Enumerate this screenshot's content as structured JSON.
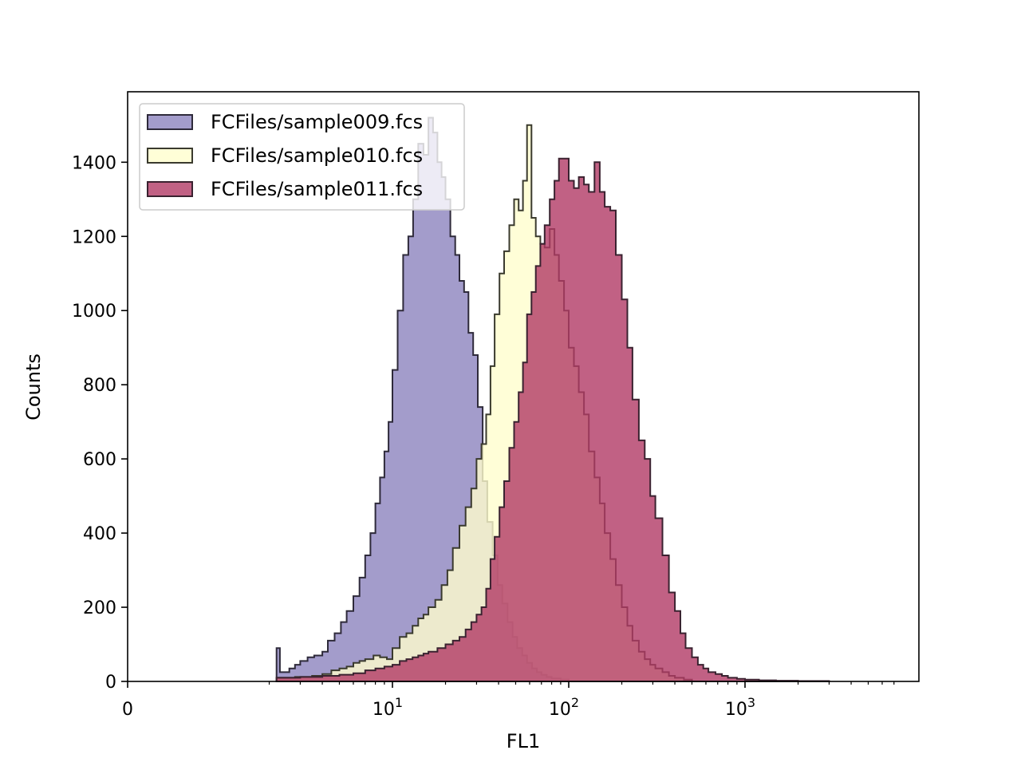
{
  "chart_data": {
    "type": "histogram",
    "xlabel": "FL1",
    "ylabel": "Counts",
    "xscale": "logicle",
    "xlim": [
      0,
      7200
    ],
    "ylim": [
      0,
      1590
    ],
    "grid": false,
    "legend_position": "top-left",
    "x_ticks": [
      {
        "value": 0,
        "label": "0",
        "exp": ""
      },
      {
        "value": 10,
        "label": "10",
        "exp": "1"
      },
      {
        "value": 100,
        "label": "10",
        "exp": "2"
      },
      {
        "value": 1000,
        "label": "10",
        "exp": "3"
      }
    ],
    "y_ticks": [
      0,
      200,
      400,
      600,
      800,
      1000,
      1200,
      1400
    ],
    "series": [
      {
        "name": "FCFiles/sample009.fcs",
        "color": "#8c83be",
        "edge": "#2e2a3a",
        "points": [
          [
            2.2,
            90
          ],
          [
            2.3,
            25
          ],
          [
            2.6,
            35
          ],
          [
            2.8,
            45
          ],
          [
            3.0,
            55
          ],
          [
            3.3,
            65
          ],
          [
            3.6,
            70
          ],
          [
            4.0,
            80
          ],
          [
            4.3,
            110
          ],
          [
            4.7,
            130
          ],
          [
            5.1,
            160
          ],
          [
            5.5,
            190
          ],
          [
            6.0,
            230
          ],
          [
            6.5,
            280
          ],
          [
            7.0,
            340
          ],
          [
            7.5,
            400
          ],
          [
            8.0,
            480
          ],
          [
            8.5,
            550
          ],
          [
            9.0,
            620
          ],
          [
            9.5,
            700
          ],
          [
            10.0,
            840
          ],
          [
            10.7,
            1000
          ],
          [
            11.5,
            1150
          ],
          [
            12.3,
            1200
          ],
          [
            13.1,
            1300
          ],
          [
            14.0,
            1450
          ],
          [
            15.0,
            1420
          ],
          [
            16.0,
            1520
          ],
          [
            17.0,
            1480
          ],
          [
            18.0,
            1400
          ],
          [
            19.0,
            1360
          ],
          [
            20.0,
            1300
          ],
          [
            21.3,
            1200
          ],
          [
            22.7,
            1150
          ],
          [
            24.0,
            1080
          ],
          [
            25.5,
            1050
          ],
          [
            27.0,
            940
          ],
          [
            28.7,
            880
          ],
          [
            30.5,
            740
          ],
          [
            32.5,
            540
          ],
          [
            34.5,
            430
          ],
          [
            37.0,
            340
          ],
          [
            39.5,
            260
          ],
          [
            42.0,
            210
          ],
          [
            45.0,
            160
          ],
          [
            48.0,
            120
          ],
          [
            51.0,
            90
          ],
          [
            54.5,
            70
          ],
          [
            58.0,
            50
          ],
          [
            62.0,
            35
          ],
          [
            66.0,
            25
          ],
          [
            70.0,
            18
          ],
          [
            75.0,
            12
          ],
          [
            80.0,
            8
          ],
          [
            90.0,
            5
          ],
          [
            100.0,
            0
          ]
        ]
      },
      {
        "name": "FCFiles/sample010.fcs",
        "color": "#fffecd",
        "edge": "#3a3a2e",
        "points": [
          [
            2.2,
            10
          ],
          [
            2.8,
            12
          ],
          [
            3.5,
            15
          ],
          [
            4.0,
            20
          ],
          [
            4.5,
            30
          ],
          [
            5.0,
            35
          ],
          [
            5.5,
            40
          ],
          [
            6.0,
            50
          ],
          [
            6.5,
            55
          ],
          [
            7.0,
            60
          ],
          [
            7.8,
            70
          ],
          [
            8.5,
            65
          ],
          [
            9.3,
            60
          ],
          [
            10.0,
            90
          ],
          [
            11.0,
            120
          ],
          [
            12.0,
            130
          ],
          [
            13.0,
            150
          ],
          [
            14.0,
            170
          ],
          [
            15.0,
            180
          ],
          [
            16.0,
            200
          ],
          [
            17.5,
            220
          ],
          [
            19.0,
            260
          ],
          [
            20.5,
            300
          ],
          [
            22.0,
            360
          ],
          [
            24.0,
            420
          ],
          [
            26.0,
            470
          ],
          [
            28.0,
            520
          ],
          [
            30.0,
            600
          ],
          [
            32.0,
            640
          ],
          [
            34.0,
            720
          ],
          [
            36.0,
            850
          ],
          [
            38.0,
            990
          ],
          [
            40.5,
            1100
          ],
          [
            43.0,
            1160
          ],
          [
            46.0,
            1230
          ],
          [
            49.0,
            1300
          ],
          [
            52.0,
            1270
          ],
          [
            55.0,
            1350
          ],
          [
            58.0,
            1500
          ],
          [
            61.5,
            1250
          ],
          [
            65.0,
            1200
          ],
          [
            69.0,
            1180
          ],
          [
            73.0,
            1170
          ],
          [
            78.0,
            1220
          ],
          [
            83.0,
            1150
          ],
          [
            88.0,
            1080
          ],
          [
            94.0,
            1000
          ],
          [
            100.0,
            900
          ],
          [
            107.0,
            850
          ],
          [
            114.0,
            780
          ],
          [
            122.0,
            720
          ],
          [
            130.0,
            620
          ],
          [
            140.0,
            550
          ],
          [
            150.0,
            480
          ],
          [
            160.0,
            400
          ],
          [
            172.0,
            330
          ],
          [
            185.0,
            260
          ],
          [
            200.0,
            200
          ],
          [
            215.0,
            150
          ],
          [
            230.0,
            110
          ],
          [
            250.0,
            80
          ],
          [
            270.0,
            60
          ],
          [
            290.0,
            45
          ],
          [
            310.0,
            35
          ],
          [
            340.0,
            25
          ],
          [
            370.0,
            15
          ],
          [
            400.0,
            10
          ],
          [
            450.0,
            5
          ],
          [
            500.0,
            0
          ]
        ]
      },
      {
        "name": "FCFiles/sample011.fcs",
        "color": "#b13a65",
        "edge": "#3a2230",
        "points": [
          [
            2.2,
            10
          ],
          [
            3.0,
            12
          ],
          [
            4.0,
            15
          ],
          [
            5.0,
            18
          ],
          [
            6.0,
            22
          ],
          [
            7.0,
            30
          ],
          [
            8.0,
            35
          ],
          [
            9.0,
            40
          ],
          [
            10.0,
            45
          ],
          [
            11.0,
            55
          ],
          [
            12.0,
            60
          ],
          [
            13.0,
            65
          ],
          [
            14.0,
            70
          ],
          [
            15.0,
            75
          ],
          [
            16.0,
            80
          ],
          [
            18.0,
            90
          ],
          [
            20.0,
            100
          ],
          [
            22.0,
            110
          ],
          [
            24.0,
            120
          ],
          [
            26.0,
            140
          ],
          [
            28.0,
            160
          ],
          [
            30.0,
            180
          ],
          [
            32.0,
            200
          ],
          [
            34.0,
            250
          ],
          [
            36.0,
            330
          ],
          [
            38.0,
            390
          ],
          [
            40.5,
            470
          ],
          [
            43.0,
            540
          ],
          [
            46.0,
            630
          ],
          [
            49.0,
            700
          ],
          [
            52.0,
            780
          ],
          [
            55.0,
            860
          ],
          [
            58.0,
            990
          ],
          [
            61.5,
            1050
          ],
          [
            65.0,
            1120
          ],
          [
            69.0,
            1180
          ],
          [
            73.0,
            1230
          ],
          [
            78.0,
            1300
          ],
          [
            83.0,
            1350
          ],
          [
            88.0,
            1410
          ],
          [
            94.0,
            1410
          ],
          [
            100.0,
            1350
          ],
          [
            107.0,
            1330
          ],
          [
            114.0,
            1360
          ],
          [
            122.0,
            1340
          ],
          [
            130.0,
            1320
          ],
          [
            140.0,
            1400
          ],
          [
            150.0,
            1320
          ],
          [
            160.0,
            1280
          ],
          [
            172.0,
            1270
          ],
          [
            185.0,
            1150
          ],
          [
            200.0,
            1030
          ],
          [
            215.0,
            900
          ],
          [
            230.0,
            760
          ],
          [
            250.0,
            650
          ],
          [
            270.0,
            600
          ],
          [
            290.0,
            500
          ],
          [
            310.0,
            440
          ],
          [
            340.0,
            340
          ],
          [
            370.0,
            240
          ],
          [
            400.0,
            190
          ],
          [
            430.0,
            130
          ],
          [
            460.0,
            90
          ],
          [
            500.0,
            65
          ],
          [
            540.0,
            45
          ],
          [
            580.0,
            35
          ],
          [
            620.0,
            25
          ],
          [
            680.0,
            20
          ],
          [
            740.0,
            15
          ],
          [
            800.0,
            10
          ],
          [
            900.0,
            7
          ],
          [
            1000.0,
            5
          ],
          [
            1200.0,
            3
          ],
          [
            1500.0,
            2
          ],
          [
            2000.0,
            1
          ],
          [
            3000.0,
            0
          ]
        ]
      }
    ]
  }
}
